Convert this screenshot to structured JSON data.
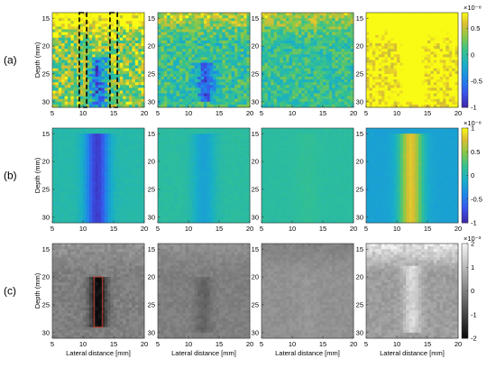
{
  "chart_data": {
    "type": "heatmap",
    "rows": [
      {
        "label": "(a)",
        "colormap": "parula",
        "colorbar": {
          "exponent": "×10⁻⁸",
          "ticks": [
            "0.5",
            "0",
            "-0.5",
            "-1"
          ],
          "range": [
            -1,
            0.8
          ]
        }
      },
      {
        "label": "(b)",
        "colormap": "parula",
        "colorbar": {
          "exponent": "×10⁻⁸",
          "ticks": [
            "1",
            "0.5",
            "0",
            "-0.5",
            "-1"
          ],
          "range": [
            -1,
            1
          ]
        }
      },
      {
        "label": "(c)",
        "colormap": "gray",
        "colorbar": {
          "exponent": "×10⁻³",
          "ticks": [
            "2",
            "1",
            "0",
            "-1",
            "-2"
          ],
          "range": [
            -2,
            2
          ]
        }
      }
    ],
    "ylabel": "Depth (mm)",
    "xlabel": "Lateral distance [mm]",
    "xticks": [
      "5",
      "10",
      "15",
      "20"
    ],
    "xlim": [
      5,
      20
    ],
    "yticks": [
      "15",
      "20",
      "25",
      "30"
    ],
    "ylim": [
      14,
      31
    ],
    "panels": [
      {
        "row": 0,
        "col": 0,
        "base": 0.35,
        "noise": 0.45,
        "top_band": 0.95,
        "needle": -0.95,
        "needle_x": 12.5,
        "needle_depth": [
          22,
          31
        ],
        "rects": [
          [
            9.4,
            14,
            10.6,
            31
          ],
          [
            14.4,
            14,
            15.6,
            31
          ]
        ]
      },
      {
        "row": 0,
        "col": 1,
        "base": 0.05,
        "noise": 0.3,
        "top_band": 0.55,
        "needle": -0.7,
        "needle_x": 12.8,
        "needle_depth": [
          23,
          30
        ],
        "rects": []
      },
      {
        "row": 0,
        "col": 2,
        "base": 0.05,
        "noise": 0.25,
        "top_band": 0.5,
        "needle": 0.0,
        "needle_x": 12.5,
        "needle_depth": [
          20,
          30
        ],
        "rects": []
      },
      {
        "row": 0,
        "col": 3,
        "base": 0.8,
        "noise": 0.3,
        "top_band": 0.8,
        "needle": 0.8,
        "needle_x": 12.5,
        "needle_depth": [
          15,
          30
        ],
        "rects": []
      },
      {
        "row": 1,
        "col": 0,
        "base": 0.05,
        "noise": 0.03,
        "top_band": 0.0,
        "needle": -0.9,
        "needle_x": 12.3,
        "needle_depth": [
          15,
          31
        ],
        "rects": []
      },
      {
        "row": 1,
        "col": 1,
        "base": 0.1,
        "noise": 0.03,
        "top_band": 0.0,
        "needle": -0.3,
        "needle_x": 12.5,
        "needle_depth": [
          15,
          31
        ],
        "rects": []
      },
      {
        "row": 1,
        "col": 2,
        "base": 0.1,
        "noise": 0.02,
        "top_band": 0.0,
        "needle": 0.05,
        "needle_x": 12.5,
        "needle_depth": [
          15,
          31
        ],
        "rects": []
      },
      {
        "row": 1,
        "col": 3,
        "base": -0.2,
        "noise": 0.02,
        "top_band": 0.0,
        "needle": 1.0,
        "needle_x": 12.3,
        "needle_depth": [
          15,
          31
        ],
        "rects": []
      },
      {
        "row": 2,
        "col": 0,
        "base": 0.0,
        "noise": 0.2,
        "top_band": 0.4,
        "needle": -2.0,
        "needle_x": 12.5,
        "needle_depth": [
          20,
          29
        ],
        "rects": [
          [
            11.8,
            20,
            13.2,
            29
          ]
        ]
      },
      {
        "row": 2,
        "col": 1,
        "base": 0.0,
        "noise": 0.15,
        "top_band": 0.3,
        "needle": -0.5,
        "needle_x": 12.5,
        "needle_depth": [
          20,
          30
        ],
        "rects": []
      },
      {
        "row": 2,
        "col": 2,
        "base": 0.3,
        "noise": 0.12,
        "top_band": -0.3,
        "needle": 0.1,
        "needle_x": 12.5,
        "needle_depth": [
          20,
          30
        ],
        "rects": []
      },
      {
        "row": 2,
        "col": 3,
        "base": 0.5,
        "noise": 0.2,
        "top_band": 1.5,
        "needle": 1.0,
        "needle_x": 12.5,
        "needle_depth": [
          18,
          30
        ],
        "rects": []
      }
    ]
  }
}
